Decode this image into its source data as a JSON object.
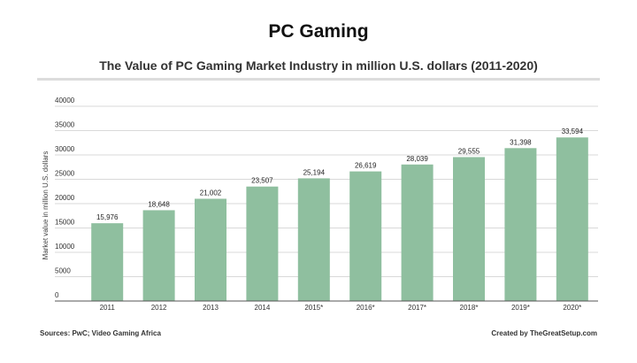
{
  "header": {
    "title": "PC Gaming",
    "subtitle": "The Value of PC Gaming Market Industry in million U.S. dollars (2011-2020)"
  },
  "footer": {
    "sources": "Sources: PwC; Video Gaming Africa",
    "credit": "Created by TheGreatSetup.com"
  },
  "colors": {
    "bar": "#8fbf9f",
    "grid": "#cccccc",
    "axis": "#555555"
  },
  "chart_data": {
    "type": "bar",
    "title": "The Value of PC Gaming Market Industry in million U.S. dollars (2011-2020)",
    "xlabel": "",
    "ylabel": "Market value in million U.S. dollars",
    "categories": [
      "2011",
      "2012",
      "2013",
      "2014",
      "2015*",
      "2016*",
      "2017*",
      "2018*",
      "2019*",
      "2020*"
    ],
    "values": [
      15976,
      18648,
      21002,
      23507,
      25194,
      26619,
      28039,
      29555,
      31398,
      33594
    ],
    "value_labels": [
      "15,976",
      "18,648",
      "21,002",
      "23,507",
      "25,194",
      "26,619",
      "28,039",
      "29,555",
      "31,398",
      "33,594"
    ],
    "yticks": [
      "0",
      "5000",
      "10000",
      "15000",
      "20000",
      "25000",
      "30000",
      "35000",
      "40000"
    ],
    "ylim": [
      0,
      40000
    ],
    "grid": true,
    "legend": "none"
  }
}
